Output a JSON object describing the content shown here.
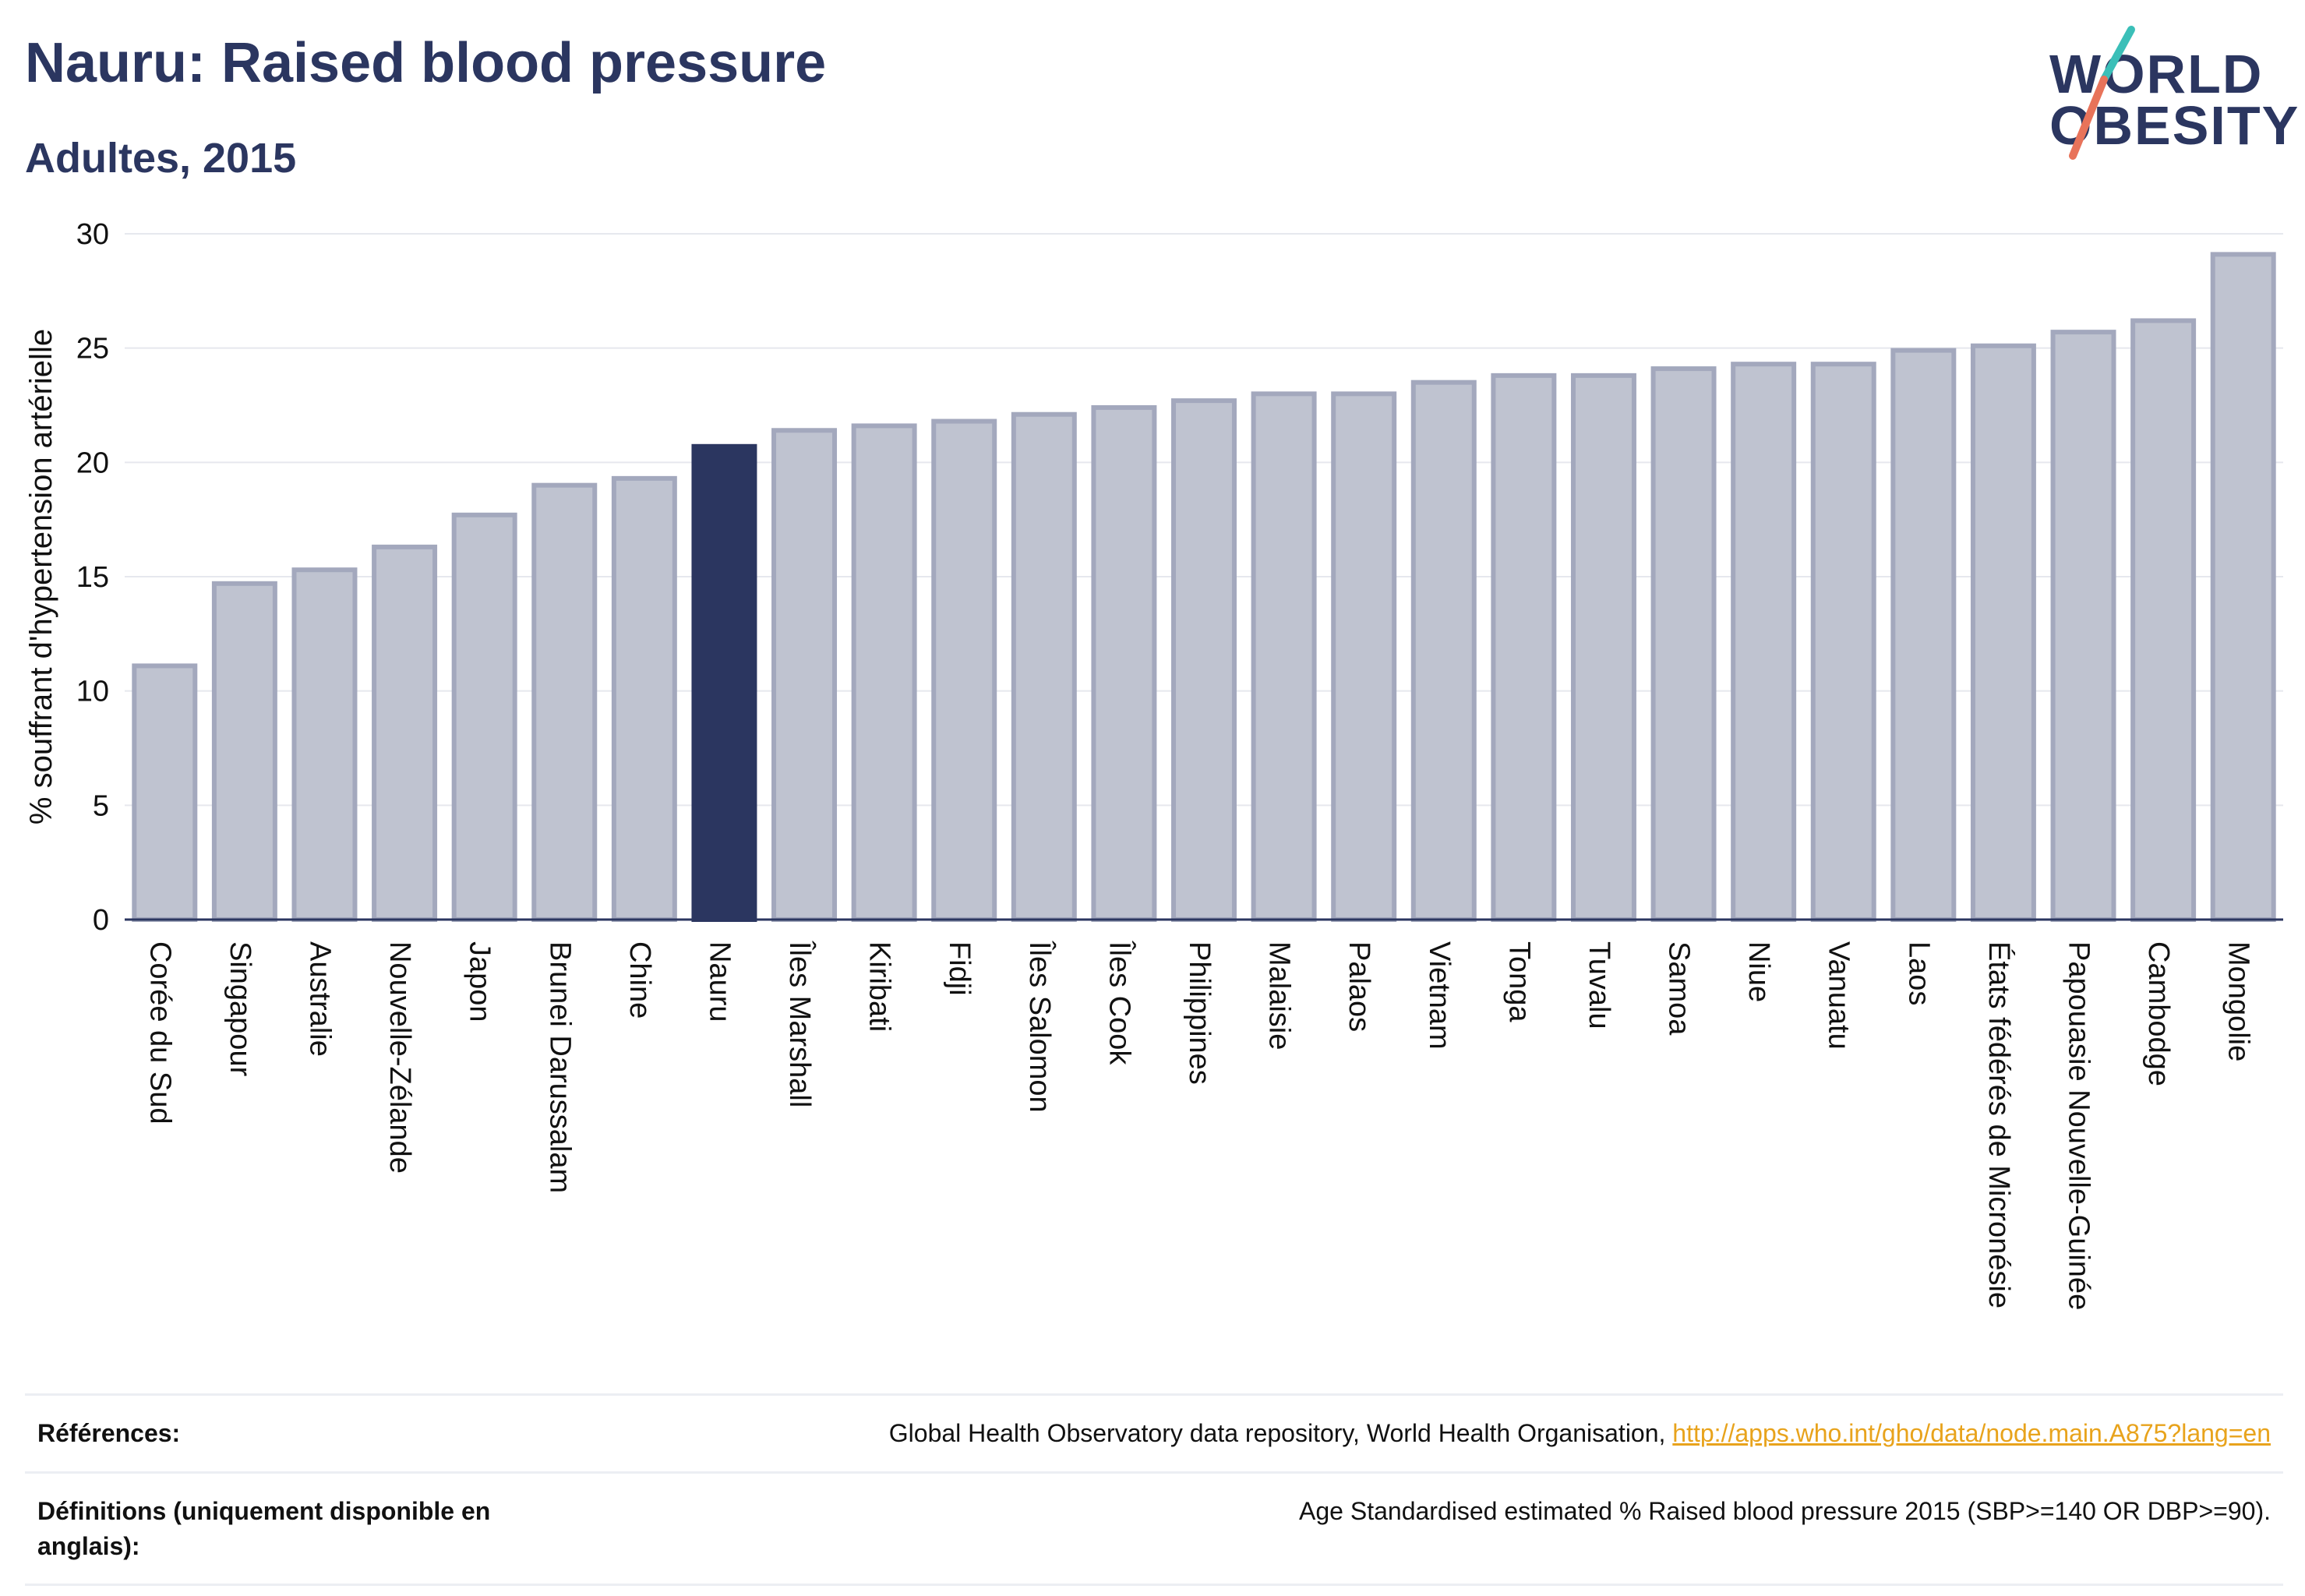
{
  "header": {
    "title": "Nauru: Raised blood pressure",
    "subtitle": "Adultes, 2015",
    "logo_line1": "WORLD",
    "logo_line2": "OBESITY"
  },
  "colors": {
    "highlight": "#2b3660",
    "bar_fill": "#bfc3d0",
    "bar_stroke": "#a3a8bd",
    "link": "#e8a31c",
    "logo_teal": "#3bbfb8",
    "logo_coral": "#e8735a"
  },
  "chart_data": {
    "type": "bar",
    "ylabel": "% souffrant d'hypertension artérielle",
    "ylim": [
      0,
      30
    ],
    "yticks": [
      0,
      5,
      10,
      15,
      20,
      25,
      30
    ],
    "grid": true,
    "highlight": "Nauru",
    "categories": [
      "Corée du Sud",
      "Singapour",
      "Australie",
      "Nouvelle-Zélande",
      "Japon",
      "Brunei Darussalam",
      "Chine",
      "Nauru",
      "Îles Marshall",
      "Kiribati",
      "Fidji",
      "Îles Salomon",
      "Îles Cook",
      "Philippines",
      "Malaisie",
      "Palaos",
      "Vietnam",
      "Tonga",
      "Tuvalu",
      "Samoa",
      "Niue",
      "Vanuatu",
      "Laos",
      "États fédérés de Micronésie",
      "Papouasie Nouvelle-Guinée",
      "Cambodge",
      "Mongolie"
    ],
    "values": [
      11.1,
      14.7,
      15.3,
      16.3,
      17.7,
      19.0,
      19.3,
      20.7,
      21.4,
      21.6,
      21.8,
      22.1,
      22.4,
      22.7,
      23.0,
      23.0,
      23.5,
      23.8,
      23.8,
      24.1,
      24.3,
      24.3,
      24.9,
      25.1,
      25.7,
      26.2,
      29.1
    ]
  },
  "references": {
    "ref_label": "Références:",
    "ref_text": "Global Health Observatory data repository, World Health Organisation, ",
    "ref_link": "http://apps.who.int/gho/data/node.main.A875?lang=en",
    "def_label": "Définitions (uniquement disponible en anglais):",
    "def_text": "Age Standardised estimated % Raised blood pressure 2015 (SBP>=140 OR DBP>=90)."
  }
}
